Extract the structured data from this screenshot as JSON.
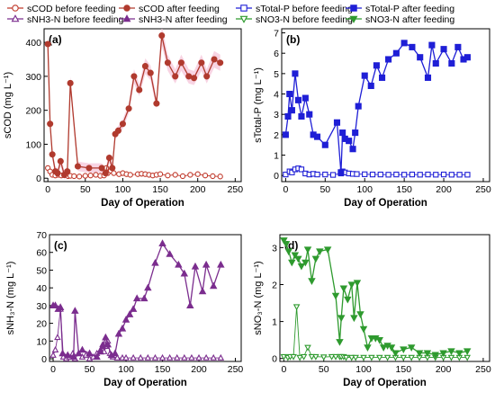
{
  "legend": [
    {
      "label": "sCOD before feeding",
      "color": "#c0392b",
      "marker": "circle",
      "filled": false
    },
    {
      "label": "sCOD after feeding",
      "color": "#b03a2e",
      "marker": "circle",
      "filled": true
    },
    {
      "label": "sTotal-P  before feeding",
      "color": "#1f1fd6",
      "marker": "square",
      "filled": false
    },
    {
      "label": "sTotal-P after feeding",
      "color": "#1f1fd6",
      "marker": "square",
      "filled": true
    },
    {
      "label": "sNH3-N before feeding",
      "color": "#7b2d8e",
      "marker": "triangle-up",
      "filled": false
    },
    {
      "label": "sNH3-N after feeding",
      "color": "#7b2d8e",
      "marker": "triangle-up",
      "filled": true
    },
    {
      "label": "sNO3-N  before feeding",
      "color": "#2e9a2e",
      "marker": "triangle-down",
      "filled": false
    },
    {
      "label": "sNO3-N after feeding",
      "color": "#2e9a2e",
      "marker": "triangle-down",
      "filled": true
    }
  ],
  "chart_data": [
    {
      "type": "line",
      "panel_label": "(a)",
      "xlabel": "Day of Operation",
      "ylabel": "sCOD (mg L⁻¹)",
      "xlim": [
        -5,
        258
      ],
      "ylim": [
        -10,
        440
      ],
      "xticks": [
        0,
        50,
        100,
        150,
        200,
        250
      ],
      "yticks": [
        0,
        100,
        200,
        300,
        400
      ],
      "error_band": true,
      "grid": false,
      "series": [
        {
          "name": "sCOD before feeding",
          "color": "#c0392b",
          "marker": "circle",
          "filled": false,
          "x": [
            0,
            3,
            6,
            10,
            14,
            18,
            22,
            27,
            30,
            35,
            42,
            50,
            57,
            64,
            70,
            75,
            78,
            80,
            84,
            88,
            95,
            100,
            105,
            110,
            120,
            125,
            130,
            135,
            140,
            145,
            150,
            160,
            170,
            180,
            190,
            200,
            210,
            220,
            230
          ],
          "y": [
            30,
            20,
            10,
            8,
            10,
            8,
            9,
            6,
            7,
            6,
            5,
            7,
            8,
            10,
            7,
            8,
            30,
            15,
            22,
            15,
            12,
            15,
            12,
            10,
            12,
            13,
            12,
            10,
            8,
            10,
            12,
            8,
            10,
            6,
            10,
            12,
            8,
            6,
            5
          ]
        },
        {
          "name": "sCOD after feeding",
          "color": "#b03a2e",
          "marker": "circle",
          "filled": true,
          "x": [
            0,
            3,
            6,
            10,
            13,
            17,
            22,
            26,
            30,
            40,
            55,
            72,
            77,
            82,
            86,
            90,
            94,
            100,
            108,
            115,
            122,
            130,
            137,
            145,
            152,
            160,
            170,
            178,
            188,
            195,
            205,
            212,
            222,
            230
          ],
          "y": [
            395,
            160,
            70,
            20,
            15,
            50,
            10,
            20,
            280,
            35,
            30,
            30,
            15,
            60,
            30,
            130,
            140,
            160,
            205,
            300,
            260,
            330,
            310,
            220,
            420,
            340,
            300,
            340,
            300,
            295,
            340,
            300,
            350,
            340
          ]
        }
      ]
    },
    {
      "type": "line",
      "panel_label": "(b)",
      "xlabel": "Day of Operation",
      "ylabel": "sTotal-P (mg L⁻¹)",
      "xlim": [
        -5,
        258
      ],
      "ylim": [
        -0.3,
        7.2
      ],
      "xticks": [
        0,
        50,
        100,
        150,
        200,
        250
      ],
      "yticks": [
        0,
        1,
        2,
        3,
        4,
        5,
        6,
        7
      ],
      "grid": false,
      "series": [
        {
          "name": "sTotal-P  before feeding",
          "color": "#1f1fd6",
          "marker": "square",
          "filled": false,
          "x": [
            0,
            5,
            8,
            12,
            16,
            20,
            25,
            30,
            35,
            40,
            50,
            60,
            70,
            72,
            75,
            80,
            85,
            90,
            100,
            110,
            120,
            130,
            140,
            150,
            160,
            170,
            180,
            190,
            200,
            210,
            220,
            230
          ],
          "y": [
            0.05,
            0.2,
            0.15,
            0.3,
            0.35,
            0.3,
            0.1,
            0.05,
            0.08,
            0.05,
            0.05,
            0.03,
            0.1,
            0.2,
            0.15,
            0.1,
            0.08,
            0.07,
            0.06,
            0.05,
            0.05,
            0.04,
            0.05,
            0.04,
            0.05,
            0.04,
            0.05,
            0.04,
            0.05,
            0.04,
            0.04,
            0.04
          ]
        },
        {
          "name": "sTotal-P after feeding",
          "color": "#1f1fd6",
          "marker": "square",
          "filled": true,
          "x": [
            0,
            3,
            5,
            8,
            12,
            16,
            20,
            25,
            30,
            35,
            40,
            50,
            65,
            70,
            72,
            75,
            80,
            85,
            88,
            92,
            100,
            108,
            115,
            122,
            130,
            140,
            150,
            160,
            170,
            180,
            185,
            190,
            200,
            210,
            218,
            225,
            230
          ],
          "y": [
            2.0,
            2.9,
            4.0,
            3.2,
            5.0,
            3.7,
            2.9,
            3.8,
            3.0,
            2.0,
            1.9,
            1.5,
            2.6,
            0.15,
            2.1,
            1.8,
            1.7,
            1.3,
            2.1,
            3.4,
            4.9,
            4.4,
            5.4,
            4.8,
            5.7,
            6.0,
            6.5,
            6.3,
            5.8,
            4.8,
            6.4,
            5.5,
            6.2,
            5.5,
            6.3,
            5.7,
            5.8
          ]
        }
      ]
    },
    {
      "type": "line",
      "panel_label": "(c)",
      "xlabel": "Day of Operation",
      "ylabel": "sNH₃-N (mg L⁻¹)",
      "xlim": [
        -5,
        258
      ],
      "ylim": [
        -1.5,
        70
      ],
      "xticks": [
        0,
        50,
        100,
        150,
        200,
        250
      ],
      "yticks": [
        0,
        10,
        20,
        30,
        40,
        50,
        60,
        70
      ],
      "grid": false,
      "series": [
        {
          "name": "sNH3-N before feeding",
          "color": "#7b2d8e",
          "marker": "triangle-up",
          "filled": false,
          "x": [
            0,
            3,
            6,
            10,
            14,
            18,
            22,
            27,
            30,
            35,
            40,
            45,
            50,
            55,
            60,
            65,
            68,
            70,
            72,
            75,
            78,
            82,
            88,
            95,
            100,
            110,
            120,
            130,
            140,
            150,
            160,
            170,
            180,
            190,
            200,
            210,
            220,
            230
          ],
          "y": [
            2,
            5,
            12,
            28,
            1,
            0,
            1,
            3,
            0,
            3,
            1,
            2,
            0,
            1,
            3,
            5,
            8,
            4,
            7,
            10,
            3,
            1,
            0.5,
            0.5,
            0.5,
            0.5,
            0.5,
            0.5,
            0.5,
            0.5,
            0.5,
            0.5,
            0.5,
            0.5,
            0.5,
            0.5,
            0.5,
            0.5
          ]
        },
        {
          "name": "sNH3-N after feeding",
          "color": "#7b2d8e",
          "marker": "triangle-up",
          "filled": true,
          "x": [
            0,
            3,
            7,
            10,
            13,
            20,
            28,
            30,
            35,
            40,
            50,
            60,
            65,
            68,
            72,
            75,
            80,
            85,
            90,
            95,
            100,
            105,
            110,
            115,
            125,
            130,
            140,
            150,
            160,
            172,
            180,
            188,
            195,
            205,
            210,
            220,
            230
          ],
          "y": [
            30,
            30,
            28,
            29,
            3,
            2,
            1,
            27,
            3,
            5,
            3,
            1,
            4,
            7,
            12,
            8,
            2,
            3,
            14,
            17,
            22,
            25,
            28,
            34,
            34,
            40,
            54,
            65,
            59,
            53,
            48,
            30,
            52,
            38,
            53,
            41,
            53
          ]
        }
      ]
    },
    {
      "type": "line",
      "panel_label": "(d)",
      "xlabel": "Day of Operation",
      "ylabel": "sNO₃-N (mg L⁻¹)",
      "xlim": [
        -5,
        258
      ],
      "ylim": [
        -0.08,
        3.35
      ],
      "xticks": [
        0,
        50,
        100,
        150,
        200,
        250
      ],
      "yticks": [
        0,
        1,
        2,
        3
      ],
      "grid": false,
      "series": [
        {
          "name": "sNO3-N  before feeding",
          "color": "#2e9a2e",
          "marker": "triangle-down",
          "filled": false,
          "x": [
            0,
            5,
            8,
            12,
            16,
            20,
            25,
            30,
            35,
            40,
            50,
            60,
            65,
            70,
            72,
            75,
            78,
            85,
            90,
            100,
            110,
            120,
            130,
            140,
            150,
            160,
            170,
            180,
            190,
            200,
            210,
            220,
            230
          ],
          "y": [
            0.05,
            0.03,
            0.05,
            0.05,
            1.4,
            0.03,
            0.05,
            0.3,
            0.05,
            0.05,
            0.04,
            0.05,
            0.05,
            0.05,
            0.05,
            0.05,
            0.03,
            0.03,
            0.03,
            0.03,
            0.03,
            0.03,
            0.03,
            0.03,
            0.03,
            0.03,
            0.03,
            0.03,
            0.03,
            0.03,
            0.03,
            0.03,
            0.03
          ]
        },
        {
          "name": "sNO3-N after feeding",
          "color": "#2e9a2e",
          "marker": "triangle-down",
          "filled": true,
          "x": [
            0,
            3,
            6,
            10,
            14,
            18,
            22,
            27,
            30,
            35,
            40,
            45,
            55,
            65,
            70,
            72,
            75,
            80,
            85,
            88,
            92,
            96,
            100,
            105,
            110,
            115,
            120,
            125,
            130,
            135,
            140,
            150,
            160,
            170,
            180,
            190,
            200,
            210,
            220,
            230
          ],
          "y": [
            3.2,
            3.1,
            2.9,
            2.6,
            2.8,
            2.7,
            2.5,
            2.6,
            2.95,
            2.1,
            2.7,
            2.9,
            2.95,
            1.7,
            0.45,
            1.1,
            1.9,
            1.6,
            2.0,
            1.1,
            2.05,
            1.2,
            0.8,
            0.3,
            0.55,
            0.55,
            0.5,
            0.3,
            0.35,
            0.3,
            0.15,
            0.25,
            0.3,
            0.15,
            0.15,
            0.1,
            0.15,
            0.2,
            0.15,
            0.2
          ]
        }
      ]
    }
  ]
}
